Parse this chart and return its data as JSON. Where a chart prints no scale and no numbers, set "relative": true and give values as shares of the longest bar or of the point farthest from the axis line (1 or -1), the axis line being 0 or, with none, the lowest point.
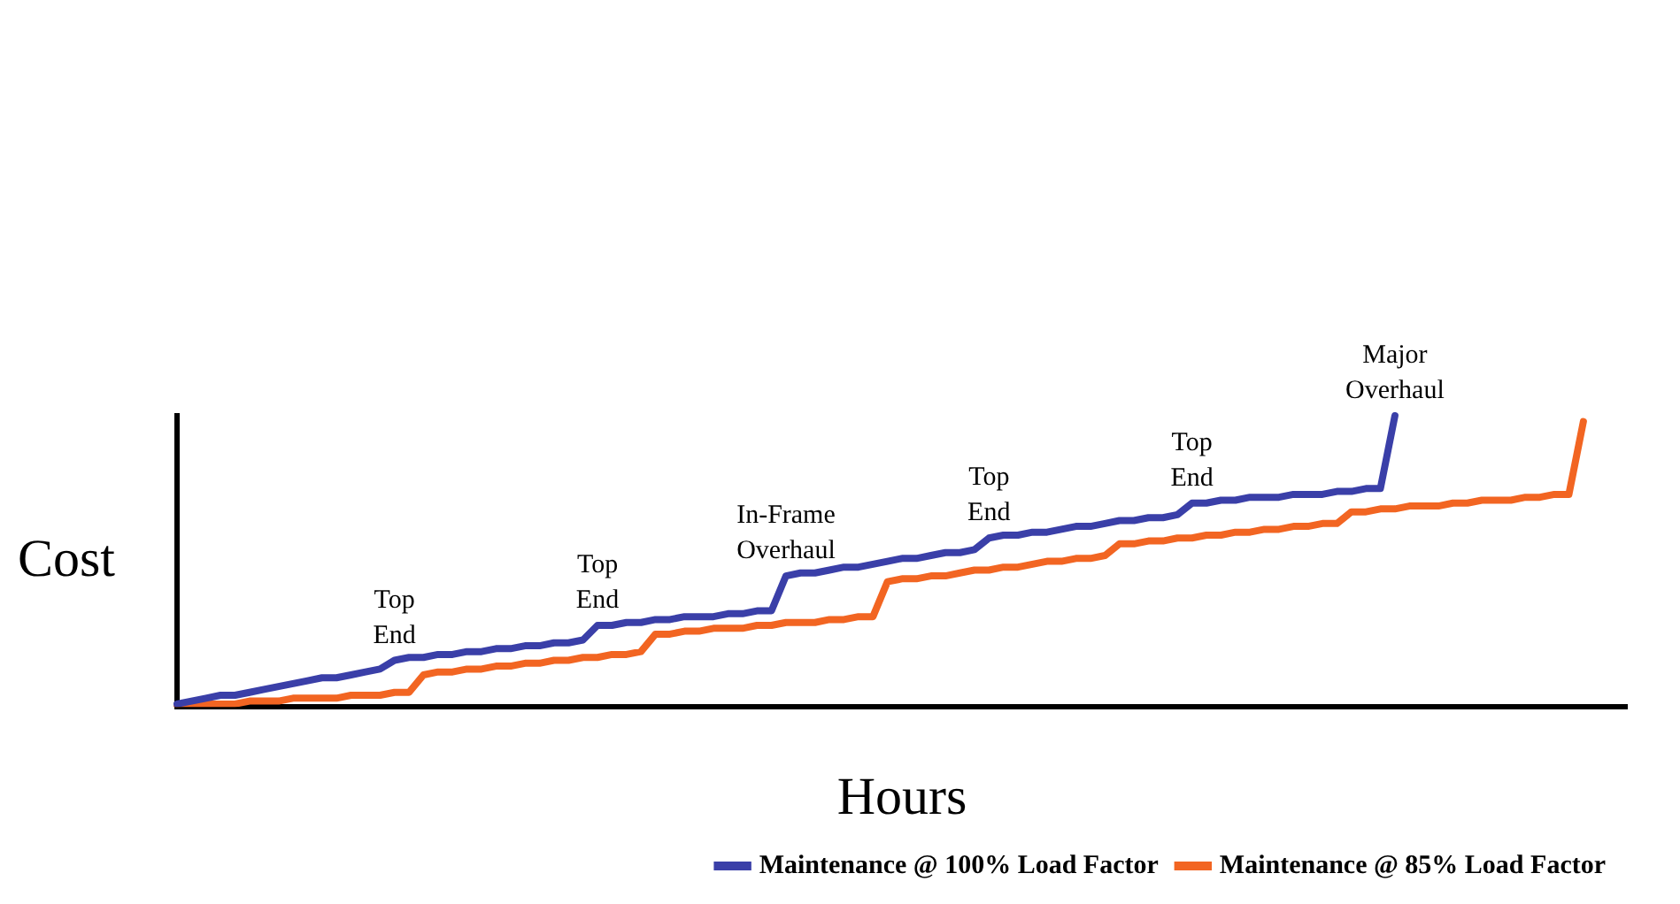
{
  "chart_data": {
    "type": "line",
    "relative": true,
    "xlabel": "Hours",
    "ylabel": "Cost",
    "legend": "bottom right",
    "marker": "none",
    "line_style": "solid",
    "grid": false,
    "categories": [
      null,
      null,
      null,
      null,
      null,
      null,
      null,
      null,
      null,
      null,
      null,
      null,
      null,
      null,
      null,
      null,
      null,
      null,
      null,
      null,
      null,
      null,
      null,
      null,
      null,
      null,
      null,
      null,
      null,
      null,
      null,
      null,
      null,
      null,
      null,
      null,
      null,
      null,
      null,
      null,
      null,
      null,
      null,
      null,
      null,
      null,
      null,
      null,
      null,
      null,
      null,
      null,
      null,
      null,
      null,
      null,
      null,
      null,
      null,
      null,
      null,
      null,
      null,
      null,
      null,
      null,
      null,
      null,
      null,
      null,
      null,
      null,
      null,
      null,
      null,
      null,
      null,
      null,
      null,
      null,
      null,
      null,
      null,
      null,
      null,
      null,
      null,
      null,
      null,
      null,
      null,
      null,
      null,
      null,
      null,
      null,
      null,
      null,
      null,
      null,
      null
    ],
    "series": [
      {
        "name": "Maintenance @ 100% Load Factor",
        "color": "#3a3fa8",
        "values": [
          0.01,
          0.02,
          0.03,
          0.04,
          0.04,
          0.05,
          0.06,
          0.07,
          0.08,
          0.09,
          0.1,
          0.1,
          0.11,
          0.12,
          0.13,
          0.16,
          0.17,
          0.17,
          0.18,
          0.18,
          0.19,
          0.19,
          0.2,
          0.2,
          0.21,
          0.21,
          0.22,
          0.22,
          0.23,
          0.28,
          0.28,
          0.29,
          0.29,
          0.3,
          0.3,
          0.31,
          0.31,
          0.31,
          0.32,
          0.32,
          0.33,
          0.33,
          0.45,
          0.46,
          0.46,
          0.47,
          0.48,
          0.48,
          0.49,
          0.5,
          0.51,
          0.51,
          0.52,
          0.53,
          0.53,
          0.54,
          0.58,
          0.59,
          0.59,
          0.6,
          0.6,
          0.61,
          0.62,
          0.62,
          0.63,
          0.64,
          0.64,
          0.65,
          0.65,
          0.66,
          0.7,
          0.7,
          0.71,
          0.71,
          0.72,
          0.72,
          0.72,
          0.73,
          0.73,
          0.73,
          0.74,
          0.74,
          0.75,
          0.75,
          1,
          null,
          null,
          null,
          null,
          null,
          null,
          null,
          null,
          null,
          null,
          null,
          null,
          null,
          null,
          null,
          null
        ]
      },
      {
        "name": "Maintenance @ 85% Load Factor",
        "color": "#f26522",
        "values": [
          0,
          0,
          0.01,
          0.01,
          0.01,
          0.02,
          0.02,
          0.02,
          0.03,
          0.03,
          0.03,
          0.03,
          0.04,
          0.04,
          0.04,
          0.05,
          0.05,
          0.11,
          0.12,
          0.12,
          0.13,
          0.13,
          0.14,
          0.14,
          0.15,
          0.15,
          0.16,
          0.16,
          0.17,
          0.17,
          0.18,
          0.18,
          0.19,
          0.25,
          0.25,
          0.26,
          0.26,
          0.27,
          0.27,
          0.27,
          0.28,
          0.28,
          0.29,
          0.29,
          0.29,
          0.3,
          0.3,
          0.31,
          0.31,
          0.43,
          0.44,
          0.44,
          0.45,
          0.45,
          0.46,
          0.47,
          0.47,
          0.48,
          0.48,
          0.49,
          0.5,
          0.5,
          0.51,
          0.51,
          0.52,
          0.56,
          0.56,
          0.57,
          0.57,
          0.58,
          0.58,
          0.59,
          0.59,
          0.6,
          0.6,
          0.61,
          0.61,
          0.62,
          0.62,
          0.63,
          0.63,
          0.67,
          0.67,
          0.68,
          0.68,
          0.69,
          0.69,
          0.69,
          0.7,
          0.7,
          0.71,
          0.71,
          0.71,
          0.72,
          0.72,
          0.73,
          0.73,
          0.98,
          null,
          null,
          null
        ]
      }
    ],
    "annotations": [
      {
        "text": "Top End",
        "y": 0.16
      },
      {
        "text": "Top End",
        "y": 0.28
      },
      {
        "text": "In-Frame Overhaul",
        "y": 0.45
      },
      {
        "text": "Top End",
        "y": 0.58
      },
      {
        "text": "Top End",
        "y": 0.7
      },
      {
        "text": "Major Overhaul",
        "y": 1
      }
    ]
  }
}
